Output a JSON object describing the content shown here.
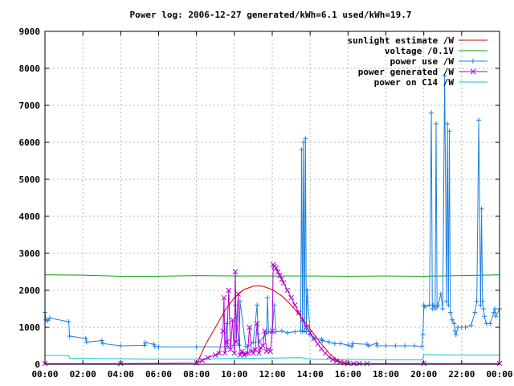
{
  "chart_data": {
    "type": "line",
    "title": "Power log: 2006-12-27 generated/kWh=6.1 used/kWh=19.7",
    "xlabel": "",
    "ylabel": "",
    "xlim": [
      0,
      24
    ],
    "ylim": [
      0,
      9000
    ],
    "x_ticks": [
      "00:00",
      "02:00",
      "04:00",
      "06:00",
      "08:00",
      "10:00",
      "12:00",
      "14:00",
      "16:00",
      "18:00",
      "20:00",
      "22:00",
      "00:00"
    ],
    "y_ticks": [
      0,
      1000,
      2000,
      3000,
      4000,
      5000,
      6000,
      7000,
      8000,
      9000
    ],
    "grid": true,
    "legend_placement": "top-right",
    "series": [
      {
        "name": "sunlight estimate /W",
        "color": "#cc0000",
        "style": "line",
        "x": [
          8.0,
          8.5,
          9.0,
          9.5,
          10.0,
          10.5,
          11.0,
          11.25,
          11.5,
          12.0,
          12.5,
          13.0,
          13.5,
          14.0,
          14.5,
          15.0,
          15.5,
          16.0
        ],
        "values": [
          0,
          560,
          1000,
          1450,
          1800,
          2020,
          2110,
          2120,
          2110,
          2020,
          1850,
          1600,
          1290,
          950,
          610,
          300,
          80,
          0
        ]
      },
      {
        "name": "voltage /0.1V",
        "color": "#00a000",
        "style": "line",
        "x": [
          0.0,
          2.0,
          4.0,
          6.0,
          8.0,
          10.0,
          12.0,
          14.0,
          16.0,
          18.0,
          20.0,
          22.0,
          24.0
        ],
        "values": [
          2420,
          2410,
          2380,
          2380,
          2400,
          2390,
          2390,
          2390,
          2380,
          2390,
          2380,
          2400,
          2420
        ]
      },
      {
        "name": "power use /W",
        "color": "#1e80e0",
        "style": "linespoints-plus",
        "x": [
          0.0,
          0.05,
          0.15,
          0.25,
          1.25,
          1.3,
          2.15,
          2.2,
          3.0,
          3.05,
          4.0,
          5.25,
          5.3,
          5.75,
          5.8,
          6.0,
          8.0,
          9.5,
          9.6,
          9.65,
          10.0,
          10.05,
          10.25,
          10.3,
          10.6,
          10.7,
          11.0,
          11.2,
          11.25,
          11.3,
          11.7,
          11.75,
          11.8,
          12.0,
          12.1,
          12.2,
          12.5,
          12.8,
          13.2,
          13.5,
          13.55,
          13.6,
          13.65,
          13.7,
          13.75,
          13.8,
          13.85,
          14.0,
          14.2,
          14.6,
          14.65,
          15.0,
          15.3,
          15.6,
          16.0,
          16.2,
          16.25,
          17.0,
          17.1,
          17.5,
          17.55,
          18.0,
          18.5,
          19.0,
          19.5,
          19.9,
          19.95,
          20.0,
          20.05,
          20.3,
          20.4,
          20.45,
          20.5,
          20.6,
          20.65,
          20.7,
          20.75,
          20.9,
          21.0,
          21.1,
          21.2,
          21.25,
          21.3,
          21.35,
          21.4,
          21.5,
          21.6,
          21.65,
          21.7,
          21.8,
          22.0,
          22.2,
          22.5,
          22.7,
          22.8,
          22.9,
          23.0,
          23.05,
          23.1,
          23.15,
          23.2,
          23.3,
          23.5,
          23.7,
          23.75,
          23.8,
          24.0
        ],
        "values": [
          1400,
          1200,
          1180,
          1250,
          1150,
          760,
          700,
          600,
          640,
          560,
          500,
          510,
          590,
          540,
          480,
          470,
          470,
          470,
          1100,
          480,
          520,
          1600,
          520,
          1700,
          480,
          480,
          600,
          1600,
          820,
          600,
          840,
          1800,
          880,
          850,
          1600,
          880,
          900,
          850,
          880,
          900,
          5800,
          880,
          6000,
          900,
          6100,
          880,
          2000,
          800,
          700,
          680,
          640,
          600,
          560,
          560,
          520,
          480,
          560,
          540,
          500,
          560,
          500,
          500,
          500,
          500,
          500,
          480,
          800,
          1600,
          1550,
          1600,
          6800,
          1500,
          1600,
          1500,
          6500,
          1550,
          1600,
          1900,
          1500,
          7800,
          1700,
          6500,
          1600,
          6300,
          1400,
          1200,
          1100,
          900,
          800,
          1000,
          1000,
          1000,
          1050,
          1400,
          1700,
          6600,
          1600,
          4200,
          1700,
          1500,
          1300,
          1100,
          1100,
          1400,
          1500,
          1300,
          1500
        ]
      },
      {
        "name": "power generated /W",
        "color": "#b000d8",
        "style": "linespoints-x",
        "x": [
          0.0,
          4.0,
          8.0,
          8.3,
          8.6,
          9.0,
          9.2,
          9.4,
          9.45,
          9.5,
          9.6,
          9.7,
          9.8,
          9.9,
          10.0,
          10.05,
          10.1,
          10.2,
          10.3,
          10.4,
          10.5,
          10.6,
          10.7,
          10.8,
          10.9,
          11.0,
          11.1,
          11.2,
          11.3,
          11.4,
          11.5,
          11.6,
          11.7,
          11.8,
          11.9,
          12.0,
          12.05,
          12.1,
          12.2,
          12.3,
          12.4,
          12.5,
          12.6,
          12.8,
          13.0,
          13.2,
          13.4,
          13.6,
          13.8,
          14.0,
          14.2,
          14.4,
          14.6,
          14.8,
          15.0,
          15.2,
          15.4,
          15.6,
          15.8,
          16.0,
          16.3,
          16.6,
          17.0,
          20.0,
          24.0
        ],
        "values": [
          20,
          20,
          40,
          100,
          180,
          250,
          300,
          900,
          1800,
          300,
          600,
          2000,
          400,
          1200,
          300,
          2500,
          600,
          1900,
          250,
          350,
          250,
          280,
          300,
          1000,
          350,
          300,
          400,
          1100,
          300,
          450,
          500,
          900,
          350,
          400,
          350,
          900,
          2700,
          2650,
          2600,
          2500,
          2400,
          2300,
          2200,
          2000,
          1800,
          1600,
          1400,
          1200,
          1000,
          850,
          700,
          550,
          420,
          300,
          200,
          130,
          90,
          60,
          40,
          20,
          20,
          20,
          20,
          20,
          20
        ]
      },
      {
        "name": "power on C14 /W",
        "color": "#00cccc",
        "style": "line",
        "x": [
          0.0,
          1.25,
          1.3,
          4.0,
          6.0,
          8.0,
          10.0,
          12.0,
          13.5,
          14.0,
          16.0,
          18.0,
          19.95,
          20.0,
          22.0,
          24.0
        ],
        "values": [
          240,
          240,
          160,
          150,
          140,
          140,
          160,
          170,
          180,
          140,
          130,
          120,
          120,
          260,
          250,
          250
        ]
      }
    ]
  }
}
